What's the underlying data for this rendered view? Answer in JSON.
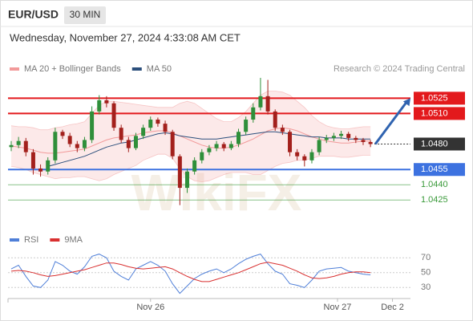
{
  "header": {
    "symbol": "EUR/USD",
    "timeframe": "30 MIN",
    "timestamp": "Wednesday, November 27, 2024 4:33:08 AM CET",
    "credit": "Research © 2024 Trading Central",
    "watermark": "WikiFX"
  },
  "chart_data": [
    {
      "type": "candlestick",
      "x": [
        0,
        1,
        2,
        3,
        4,
        5,
        6,
        7,
        8,
        9,
        10,
        11,
        12,
        13,
        14,
        15,
        16,
        17,
        18,
        19,
        20,
        21,
        22,
        23,
        24,
        25,
        26,
        27,
        28,
        29,
        30,
        31,
        32,
        33,
        34,
        35,
        36,
        37,
        38,
        39,
        40,
        41,
        42,
        43,
        44,
        45,
        46,
        47,
        48,
        49
      ],
      "open": [
        1.0477,
        1.0479,
        1.0483,
        1.0472,
        1.0456,
        1.0453,
        1.0464,
        1.0492,
        1.0488,
        1.048,
        1.0476,
        1.0484,
        1.0512,
        1.0523,
        1.052,
        1.0496,
        1.0484,
        1.0476,
        1.0488,
        1.0496,
        1.0504,
        1.05,
        1.0492,
        1.0468,
        1.0437,
        1.0453,
        1.0464,
        1.0472,
        1.0476,
        1.048,
        1.0476,
        1.048,
        1.0492,
        1.0504,
        1.0516,
        1.0527,
        1.0512,
        1.0496,
        1.0492,
        1.0472,
        1.0468,
        1.0464,
        1.0472,
        1.0484,
        1.0486,
        1.0488,
        1.049,
        1.0486,
        1.0484,
        1.0482
      ],
      "high": [
        1.0483,
        1.0487,
        1.0486,
        1.0475,
        1.046,
        1.0467,
        1.0496,
        1.0494,
        1.0491,
        1.0483,
        1.0487,
        1.0517,
        1.0528,
        1.0527,
        1.0522,
        1.0499,
        1.0487,
        1.0491,
        1.0499,
        1.0507,
        1.0506,
        1.0503,
        1.0494,
        1.047,
        1.0456,
        1.0467,
        1.0475,
        1.0479,
        1.0483,
        1.0482,
        1.0483,
        1.0495,
        1.0507,
        1.052,
        1.0545,
        1.0543,
        1.0514,
        1.0499,
        1.0494,
        1.0475,
        1.047,
        1.0475,
        1.0487,
        1.0489,
        1.0491,
        1.0493,
        1.0492,
        1.0488,
        1.0486,
        1.0484
      ],
      "low": [
        1.0473,
        1.0476,
        1.0468,
        1.045,
        1.0448,
        1.045,
        1.0461,
        1.0485,
        1.0477,
        1.0472,
        1.0473,
        1.0481,
        1.0509,
        1.0516,
        1.0493,
        1.0481,
        1.0472,
        1.0474,
        1.0485,
        1.0493,
        1.0497,
        1.0489,
        1.0465,
        1.042,
        1.0432,
        1.045,
        1.0461,
        1.0469,
        1.0473,
        1.0473,
        1.0474,
        1.0477,
        1.0489,
        1.0501,
        1.0513,
        1.0509,
        1.0493,
        1.0489,
        1.0468,
        1.0464,
        1.0458,
        1.0461,
        1.0469,
        1.0481,
        1.0483,
        1.0485,
        1.0483,
        1.0481,
        1.0479,
        1.0477
      ],
      "close": [
        1.0479,
        1.0483,
        1.0472,
        1.0456,
        1.0453,
        1.0464,
        1.0492,
        1.0488,
        1.048,
        1.0476,
        1.0484,
        1.0512,
        1.0523,
        1.052,
        1.0496,
        1.0484,
        1.0476,
        1.0488,
        1.0496,
        1.0504,
        1.05,
        1.0492,
        1.0468,
        1.0437,
        1.0453,
        1.0464,
        1.0472,
        1.0476,
        1.048,
        1.0476,
        1.048,
        1.0492,
        1.0504,
        1.0516,
        1.0527,
        1.0512,
        1.0496,
        1.0492,
        1.0472,
        1.0468,
        1.0464,
        1.0472,
        1.0484,
        1.0486,
        1.0488,
        1.049,
        1.0486,
        1.0484,
        1.0482,
        1.048
      ],
      "up_color": "#2f8f3a",
      "down_color": "#a3201c",
      "series": [
        {
          "name": "MA 20 + Bollinger Bands",
          "color": "#f29a9a",
          "values": [
            1.0478,
            1.0477,
            1.0476,
            1.0474,
            1.0472,
            1.0471,
            1.0471,
            1.0472,
            1.0473,
            1.0474,
            1.0475,
            1.0478,
            1.0481,
            1.0484,
            1.0486,
            1.0487,
            1.0488,
            1.0489,
            1.0491,
            1.0492,
            1.0493,
            1.0493,
            1.0491,
            1.0488,
            1.0485,
            1.0482,
            1.0479,
            1.0477,
            1.0476,
            1.0476,
            1.0477,
            1.0479,
            1.0482,
            1.0485,
            1.0489,
            1.0493,
            1.0495,
            1.0496,
            1.0495,
            1.0493,
            1.049,
            1.0487,
            1.0485,
            1.0483,
            1.0482,
            1.0481,
            1.0481,
            1.0482,
            1.0483,
            1.0483
          ],
          "upper": [
            1.0498,
            1.0497,
            1.0497,
            1.0496,
            1.0494,
            1.0494,
            1.0496,
            1.0497,
            1.0499,
            1.05,
            1.0502,
            1.051,
            1.0518,
            1.0522,
            1.0522,
            1.0521,
            1.052,
            1.0519,
            1.0518,
            1.0517,
            1.0516,
            1.0516,
            1.0516,
            1.052,
            1.0522,
            1.052,
            1.0515,
            1.051,
            1.0505,
            1.0502,
            1.0502,
            1.0506,
            1.0512,
            1.052,
            1.0528,
            1.0532,
            1.0532,
            1.0531,
            1.0528,
            1.0522,
            1.0516,
            1.0508,
            1.0502,
            1.0498,
            1.0496,
            1.0495,
            1.0495,
            1.0496,
            1.0497,
            1.0497
          ],
          "lower": [
            1.0458,
            1.0457,
            1.0455,
            1.0452,
            1.045,
            1.0448,
            1.0446,
            1.0447,
            1.0447,
            1.0448,
            1.0448,
            1.0446,
            1.0444,
            1.0446,
            1.045,
            1.0453,
            1.0456,
            1.0459,
            1.0464,
            1.0467,
            1.047,
            1.047,
            1.0466,
            1.0456,
            1.0448,
            1.0444,
            1.0443,
            1.0444,
            1.0447,
            1.045,
            1.0452,
            1.0452,
            1.0452,
            1.045,
            1.045,
            1.0454,
            1.0458,
            1.0461,
            1.0462,
            1.0464,
            1.0464,
            1.0466,
            1.0468,
            1.0468,
            1.0468,
            1.0467,
            1.0467,
            1.0468,
            1.0469,
            1.0469
          ]
        },
        {
          "name": "MA 50",
          "color": "#2c4f7c",
          "values": [
            null,
            null,
            null,
            null,
            null,
            1.0458,
            1.046,
            1.0462,
            1.0464,
            1.0466,
            1.0468,
            1.0471,
            1.0474,
            1.0477,
            1.0479,
            1.0481,
            1.0482,
            1.0484,
            1.0486,
            1.0488,
            1.049,
            1.0491,
            1.049,
            1.0488,
            1.0487,
            1.0486,
            1.0485,
            1.0485,
            1.0485,
            1.0486,
            1.0487,
            1.0488,
            1.0489,
            1.049,
            1.0491,
            1.0492,
            1.0492,
            1.0491,
            1.049,
            1.0489,
            1.0488,
            1.0487,
            1.0487,
            1.0486,
            1.0486,
            1.0486,
            1.0485,
            1.0485,
            1.0485,
            1.0485
          ]
        }
      ],
      "levels": [
        {
          "value": 1.0525,
          "label": "1.0525",
          "color": "#e3191c",
          "style": "solid",
          "boxed": true
        },
        {
          "value": 1.051,
          "label": "1.0510",
          "color": "#e3191c",
          "style": "solid",
          "boxed": true
        },
        {
          "value": 1.048,
          "label": "1.0480",
          "color": "#333333",
          "style": "dotted",
          "boxed": true
        },
        {
          "value": 1.0455,
          "label": "1.0455",
          "color": "#3d72e0",
          "style": "solid",
          "boxed": true
        },
        {
          "value": 1.044,
          "label": "1.0440",
          "color": "#3a9a3a",
          "style": "thin",
          "boxed": false
        },
        {
          "value": 1.0425,
          "label": "1.0425",
          "color": "#3a9a3a",
          "style": "thin",
          "boxed": false
        }
      ],
      "target_color": "#2f63b0",
      "xlim": [
        0,
        55
      ],
      "ylim": [
        1.0415,
        1.0545
      ]
    },
    {
      "type": "line",
      "series": [
        {
          "name": "RSI",
          "color": "#4f7fd8",
          "values": [
            55,
            60,
            45,
            32,
            30,
            40,
            65,
            60,
            52,
            48,
            58,
            72,
            75,
            70,
            52,
            45,
            40,
            55,
            60,
            65,
            60,
            52,
            35,
            22,
            32,
            42,
            48,
            52,
            55,
            50,
            55,
            62,
            68,
            72,
            75,
            62,
            52,
            48,
            35,
            33,
            30,
            40,
            52,
            55,
            56,
            57,
            52,
            50,
            48,
            47
          ]
        },
        {
          "name": "9MA",
          "color": "#d93030",
          "values": [
            52,
            53,
            52,
            50,
            47,
            45,
            46,
            48,
            50,
            52,
            54,
            57,
            60,
            63,
            63,
            61,
            58,
            56,
            55,
            56,
            57,
            58,
            55,
            50,
            45,
            41,
            38,
            38,
            41,
            44,
            47,
            50,
            54,
            58,
            62,
            64,
            62,
            60,
            56,
            52,
            47,
            43,
            42,
            43,
            45,
            48,
            50,
            51,
            51,
            50
          ]
        }
      ],
      "xlim": [
        0,
        55
      ],
      "xticks": [
        {
          "value": 19,
          "label": "Nov 26"
        },
        {
          "value": 44.5,
          "label": "Nov 27"
        },
        {
          "value": 52,
          "label": "Dec 2"
        }
      ],
      "ylim": [
        20,
        80
      ],
      "yticks": [
        30,
        50,
        70
      ],
      "grid": true
    }
  ]
}
